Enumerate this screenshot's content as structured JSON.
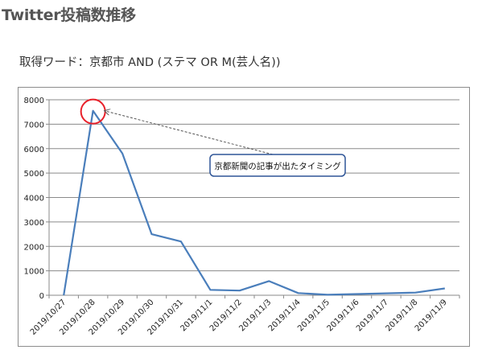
{
  "page": {
    "title": "Twitter投稿数推移",
    "query_label": "取得ワード：",
    "query_value": "京都市 AND (ステマ OR M(芸人名))"
  },
  "chart_data": {
    "type": "line",
    "categories": [
      "2019/10/27",
      "2019/10/28",
      "2019/10/29",
      "2019/10/30",
      "2019/10/31",
      "2019/11/1",
      "2019/11/2",
      "2019/11/3",
      "2019/11/4",
      "2019/11/5",
      "2019/11/6",
      "2019/11/7",
      "2019/11/8",
      "2019/11/9"
    ],
    "series": [
      {
        "values": [
          0,
          7550,
          5800,
          2500,
          2200,
          220,
          190,
          580,
          90,
          20,
          50,
          80,
          110,
          280
        ]
      }
    ],
    "yticks": [
      0,
      1000,
      2000,
      3000,
      4000,
      5000,
      6000,
      7000,
      8000
    ],
    "ylim": [
      0,
      8000
    ],
    "grid": true,
    "legend": "none",
    "title": "",
    "xlabel": "",
    "ylabel": "",
    "line_color": "#4a7ebb",
    "annotation": {
      "text": "京都新聞の記事が出たタイミング",
      "target_category": "2019/10/28",
      "circle_color": "#e8202a",
      "box_border_color": "#2f5597"
    }
  }
}
